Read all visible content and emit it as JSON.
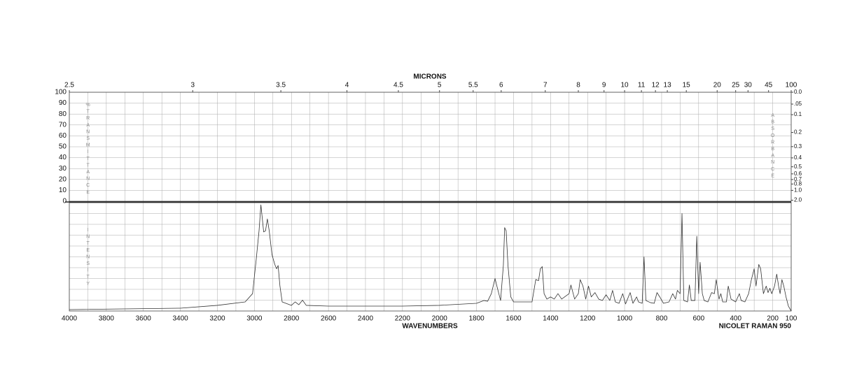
{
  "chart_data": {
    "type": "line",
    "x2label": "MICRONS",
    "xlabel": "WAVENUMBERS",
    "annotation": "NICOLET RAMAN 950",
    "ylabel": "%TRANSMITTANCE",
    "y3label": "ABSORBANCE",
    "y2label": "INTENSITY",
    "xlim": [
      4000,
      100
    ],
    "xticks": [
      4000,
      3800,
      3600,
      3400,
      3200,
      3000,
      2800,
      2600,
      2400,
      2200,
      2000,
      1800,
      1600,
      1400,
      1200,
      1000,
      800,
      600,
      400,
      200,
      100
    ],
    "x2ticks": [
      2.5,
      3,
      3.5,
      4,
      4.5,
      5,
      5.5,
      6,
      7,
      8,
      9,
      10,
      11,
      12,
      13,
      15,
      20,
      25,
      30,
      45,
      100
    ],
    "ylim": [
      0,
      100
    ],
    "yticks": [
      0,
      10,
      20,
      30,
      40,
      50,
      60,
      70,
      80,
      90,
      100
    ],
    "y3ticks": [
      {
        "value": 0,
        "label": "0.0"
      },
      {
        "value": 0.05,
        "label": ".05"
      },
      0.1,
      0.2,
      0.3,
      0.4,
      0.5,
      0.6,
      0.7,
      0.8,
      {
        "value": 1,
        "label": "1.0"
      },
      {
        "value": 2,
        "label": "2.0"
      }
    ],
    "y2lim": [
      0,
      100
    ],
    "grid": true,
    "x": [
      4000,
      3400,
      3200,
      3050,
      3010,
      2990,
      2975,
      2965,
      2950,
      2940,
      2930,
      2920,
      2905,
      2890,
      2880,
      2872,
      2862,
      2850,
      2800,
      2780,
      2760,
      2740,
      2720,
      2600,
      2400,
      2200,
      2000,
      1800,
      1760,
      1740,
      1720,
      1700,
      1690,
      1670,
      1655,
      1648,
      1640,
      1630,
      1615,
      1600,
      1500,
      1480,
      1465,
      1455,
      1445,
      1435,
      1420,
      1400,
      1380,
      1360,
      1340,
      1300,
      1290,
      1270,
      1250,
      1240,
      1225,
      1210,
      1195,
      1180,
      1160,
      1140,
      1120,
      1100,
      1080,
      1065,
      1050,
      1030,
      1010,
      995,
      970,
      955,
      935,
      925,
      905,
      895,
      885,
      860,
      840,
      825,
      810,
      790,
      760,
      740,
      725,
      715,
      700,
      690,
      680,
      660,
      650,
      640,
      620,
      610,
      600,
      592,
      580,
      570,
      550,
      530,
      515,
      505,
      490,
      480,
      470,
      450,
      440,
      425,
      400,
      380,
      370,
      350,
      330,
      315,
      300,
      290,
      275,
      265,
      250,
      235,
      225,
      215,
      205,
      190,
      178,
      168,
      160,
      150,
      140,
      128,
      115,
      100
    ],
    "series": [
      {
        "axis": "y2",
        "color": "#333333",
        "values": [
          1.3,
          2.6,
          5.2,
          8.4,
          16,
          48,
          74,
          98,
          73,
          74,
          85,
          74,
          52,
          43,
          39,
          42,
          23,
          8.4,
          5.2,
          8.4,
          5.8,
          10,
          5.2,
          4.5,
          4.5,
          4.5,
          5.2,
          7.1,
          9.7,
          9,
          16,
          30,
          23,
          9.7,
          42,
          77,
          74,
          42,
          13,
          8.4,
          8.4,
          29,
          28,
          39,
          41,
          16,
          11,
          13,
          11,
          16,
          11,
          16,
          24,
          11,
          16,
          29,
          23,
          11,
          23,
          13,
          17,
          11,
          9.7,
          15,
          9.7,
          19,
          8.4,
          7.1,
          16,
          6.5,
          17,
          7.1,
          13,
          8.4,
          7.1,
          50,
          9.7,
          7.7,
          7.1,
          17,
          13,
          7.1,
          8.4,
          16,
          11,
          19,
          16,
          90,
          9.7,
          8.4,
          24,
          9.7,
          9.7,
          69,
          16,
          45,
          16,
          9.7,
          8.4,
          17,
          16,
          29,
          11,
          16,
          8.4,
          8.4,
          23,
          11,
          8.4,
          16,
          9.7,
          8.4,
          16,
          29,
          39,
          23,
          43,
          39,
          16,
          23,
          17,
          21,
          16,
          23,
          34,
          23,
          16,
          29,
          23,
          13,
          4.5,
          0
        ]
      }
    ]
  }
}
